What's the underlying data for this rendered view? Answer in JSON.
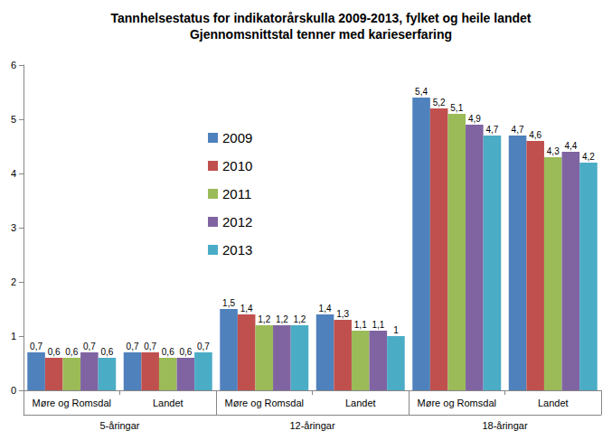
{
  "chart_data": {
    "type": "bar",
    "title": "Tannhelsestatus for indikatorårskulla 2009-2013, fylket og heile landet",
    "subtitle": "Gjennomsnittstal tenner med karieserfaring",
    "categories": [
      "Møre og Romsdal",
      "Landet",
      "Møre og Romsdal",
      "Landet",
      "Møre og Romsdal",
      "Landet"
    ],
    "group_labels": [
      "5-åringar",
      "12-åringar",
      "18-åringar"
    ],
    "series": [
      {
        "name": "2009",
        "color": "#4f81bd",
        "values": [
          0.7,
          0.7,
          1.5,
          1.4,
          5.4,
          4.7
        ],
        "value_labels": [
          "0,7",
          "0,7",
          "1,5",
          "1,4",
          "5,4",
          "4,7"
        ]
      },
      {
        "name": "2010",
        "color": "#c0504d",
        "values": [
          0.6,
          0.7,
          1.4,
          1.3,
          5.2,
          4.6
        ],
        "value_labels": [
          "0,6",
          "0,7",
          "1,4",
          "1,3",
          "5,2",
          "4,6"
        ]
      },
      {
        "name": "2011",
        "color": "#9bbb59",
        "values": [
          0.6,
          0.6,
          1.2,
          1.1,
          5.1,
          4.3
        ],
        "value_labels": [
          "0,6",
          "0,6",
          "1,2",
          "1,1",
          "5,1",
          "4,3"
        ]
      },
      {
        "name": "2012",
        "color": "#8064a2",
        "values": [
          0.7,
          0.6,
          1.2,
          1.1,
          4.9,
          4.4
        ],
        "value_labels": [
          "0,7",
          "0,6",
          "1,2",
          "1,1",
          "4,9",
          "4,4"
        ]
      },
      {
        "name": "2013",
        "color": "#4bacc6",
        "values": [
          0.6,
          0.7,
          1.2,
          1,
          4.7,
          4.2
        ],
        "value_labels": [
          "0,6",
          "0,7",
          "1,2",
          "1",
          "4,7",
          "4,2"
        ]
      }
    ],
    "ylim": [
      0,
      6
    ],
    "yticks": [
      0,
      1,
      2,
      3,
      4,
      5,
      6
    ],
    "grid": false,
    "legend": "left",
    "data_labels": true
  }
}
